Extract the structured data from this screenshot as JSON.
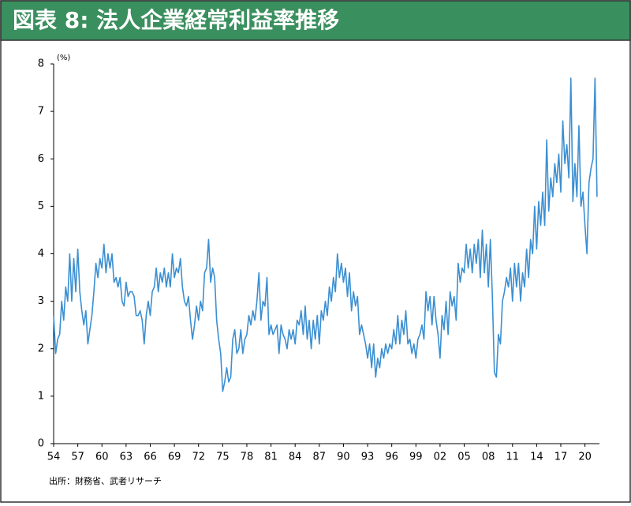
{
  "chart_data": {
    "type": "line",
    "title": "図表 8: 法人企業経常利益率推移",
    "y_label": "(%)",
    "source": "出所：財務省、武者リサーチ",
    "color": "#3b8fd2",
    "x": [
      1954,
      1954.25,
      1954.5,
      1954.75,
      1955,
      1955.25,
      1955.5,
      1955.75,
      1956,
      1956.25,
      1956.5,
      1956.75,
      1957,
      1957.25,
      1957.5,
      1957.75,
      1958,
      1958.25,
      1958.5,
      1958.75,
      1959,
      1959.25,
      1959.5,
      1959.75,
      1960,
      1960.25,
      1960.5,
      1960.75,
      1961,
      1961.25,
      1961.5,
      1961.75,
      1962,
      1962.25,
      1962.5,
      1962.75,
      1963,
      1963.25,
      1963.5,
      1963.75,
      1964,
      1964.25,
      1964.5,
      1964.75,
      1965,
      1965.25,
      1965.5,
      1965.75,
      1966,
      1966.25,
      1966.5,
      1966.75,
      1967,
      1967.25,
      1967.5,
      1967.75,
      1968,
      1968.25,
      1968.5,
      1968.75,
      1969,
      1969.25,
      1969.5,
      1969.75,
      1970,
      1970.25,
      1970.5,
      1970.75,
      1971,
      1971.25,
      1971.5,
      1971.75,
      1972,
      1972.25,
      1972.5,
      1972.75,
      1973,
      1973.25,
      1973.5,
      1973.75,
      1974,
      1974.25,
      1974.5,
      1974.75,
      1975,
      1975.25,
      1975.5,
      1975.75,
      1976,
      1976.25,
      1976.5,
      1976.75,
      1977,
      1977.25,
      1977.5,
      1977.75,
      1978,
      1978.25,
      1978.5,
      1978.75,
      1979,
      1979.25,
      1979.5,
      1979.75,
      1980,
      1980.25,
      1980.5,
      1980.75,
      1981,
      1981.25,
      1981.5,
      1981.75,
      1982,
      1982.25,
      1982.5,
      1982.75,
      1983,
      1983.25,
      1983.5,
      1983.75,
      1984,
      1984.25,
      1984.5,
      1984.75,
      1985,
      1985.25,
      1985.5,
      1985.75,
      1986,
      1986.25,
      1986.5,
      1986.75,
      1987,
      1987.25,
      1987.5,
      1987.75,
      1988,
      1988.25,
      1988.5,
      1988.75,
      1989,
      1989.25,
      1989.5,
      1989.75,
      1990,
      1990.25,
      1990.5,
      1990.75,
      1991,
      1991.25,
      1991.5,
      1991.75,
      1992,
      1992.25,
      1992.5,
      1992.75,
      1993,
      1993.25,
      1993.5,
      1993.75,
      1994,
      1994.25,
      1994.5,
      1994.75,
      1995,
      1995.25,
      1995.5,
      1995.75,
      1996,
      1996.25,
      1996.5,
      1996.75,
      1997,
      1997.25,
      1997.5,
      1997.75,
      1998,
      1998.25,
      1998.5,
      1998.75,
      1999,
      1999.25,
      1999.5,
      1999.75,
      2000,
      2000.25,
      2000.5,
      2000.75,
      2001,
      2001.25,
      2001.5,
      2001.75,
      2002,
      2002.25,
      2002.5,
      2002.75,
      2003,
      2003.25,
      2003.5,
      2003.75,
      2004,
      2004.25,
      2004.5,
      2004.75,
      2005,
      2005.25,
      2005.5,
      2005.75,
      2006,
      2006.25,
      2006.5,
      2006.75,
      2007,
      2007.25,
      2007.5,
      2007.75,
      2008,
      2008.25,
      2008.5,
      2008.75,
      2009,
      2009.25,
      2009.5,
      2009.75,
      2010,
      2010.25,
      2010.5,
      2010.75,
      2011,
      2011.25,
      2011.5,
      2011.75,
      2012,
      2012.25,
      2012.5,
      2012.75,
      2013,
      2013.25,
      2013.5,
      2013.75,
      2014,
      2014.25,
      2014.5,
      2014.75,
      2015,
      2015.25,
      2015.5,
      2015.75,
      2016,
      2016.25,
      2016.5,
      2016.75,
      2017,
      2017.25,
      2017.5,
      2017.75,
      2018,
      2018.25,
      2018.5,
      2018.75,
      2019,
      2019.25,
      2019.5,
      2019.75,
      2020,
      2020.25,
      2020.5,
      2020.75,
      2021,
      2021.25,
      2021.5
    ],
    "values": [
      2.7,
      1.9,
      2.2,
      2.3,
      3.0,
      2.6,
      3.3,
      3.0,
      4.0,
      3.0,
      3.9,
      3.2,
      4.1,
      3.2,
      2.8,
      2.5,
      2.8,
      2.1,
      2.4,
      2.7,
      3.2,
      3.8,
      3.5,
      3.9,
      3.7,
      4.2,
      3.6,
      4.0,
      3.7,
      4.0,
      3.4,
      3.5,
      3.3,
      3.5,
      3.0,
      2.9,
      3.4,
      3.1,
      3.2,
      3.2,
      3.1,
      2.7,
      2.7,
      2.8,
      2.6,
      2.1,
      2.7,
      3.0,
      2.7,
      3.2,
      3.3,
      3.7,
      3.2,
      3.6,
      3.4,
      3.7,
      3.3,
      3.6,
      3.3,
      4.0,
      3.5,
      3.7,
      3.6,
      3.9,
      3.3,
      3.0,
      2.9,
      3.1,
      2.6,
      2.2,
      2.5,
      2.9,
      2.6,
      3.0,
      2.8,
      3.6,
      3.7,
      4.3,
      3.4,
      3.7,
      3.5,
      2.6,
      2.2,
      1.9,
      1.1,
      1.3,
      1.6,
      1.3,
      1.4,
      2.2,
      2.4,
      1.9,
      2.0,
      2.4,
      1.9,
      2.2,
      2.3,
      2.7,
      2.5,
      2.8,
      2.6,
      3.0,
      3.6,
      2.6,
      3.0,
      2.9,
      3.5,
      2.3,
      2.5,
      2.3,
      2.4,
      2.5,
      1.9,
      2.5,
      2.3,
      2.2,
      2.0,
      2.4,
      2.2,
      2.4,
      2.1,
      2.6,
      2.5,
      2.8,
      2.3,
      2.9,
      2.2,
      2.6,
      2.0,
      2.6,
      2.2,
      2.7,
      2.1,
      2.8,
      2.6,
      3.0,
      2.7,
      3.3,
      3.0,
      3.5,
      3.2,
      4.0,
      3.5,
      3.8,
      3.4,
      3.7,
      3.1,
      3.6,
      2.8,
      3.2,
      2.9,
      3.1,
      2.3,
      2.5,
      2.3,
      2.1,
      1.8,
      2.1,
      1.6,
      2.1,
      1.4,
      1.8,
      1.6,
      2.0,
      1.8,
      2.1,
      1.9,
      2.1,
      2.0,
      2.4,
      2.1,
      2.7,
      2.1,
      2.6,
      2.3,
      2.8,
      2.1,
      2.2,
      1.9,
      2.1,
      1.8,
      2.2,
      2.3,
      2.5,
      2.2,
      3.2,
      2.8,
      3.1,
      2.5,
      3.1,
      2.6,
      2.3,
      1.8,
      2.7,
      2.4,
      3.0,
      2.3,
      3.2,
      2.9,
      3.1,
      2.6,
      3.8,
      3.4,
      3.7,
      3.6,
      4.2,
      3.7,
      4.1,
      3.6,
      4.2,
      3.8,
      4.3,
      3.5,
      4.5,
      3.6,
      4.2,
      3.3,
      4.3,
      3.1,
      1.5,
      1.4,
      2.3,
      2.1,
      3.0,
      3.2,
      3.5,
      3.3,
      3.7,
      3.0,
      3.8,
      3.3,
      3.8,
      3.0,
      3.6,
      3.3,
      4.1,
      3.5,
      4.3,
      4.0,
      5.0,
      4.1,
      5.1,
      4.6,
      5.3,
      4.6,
      6.4,
      4.9,
      5.6,
      5.2,
      5.9,
      5.5,
      6.1,
      5.3,
      6.8,
      5.9,
      6.3,
      5.6,
      7.7,
      5.1,
      5.9,
      5.2,
      6.7,
      5.0,
      5.3,
      4.6,
      4.0,
      5.5,
      5.8,
      6.0,
      7.7,
      5.2
    ],
    "xlim": [
      1954,
      2021.8
    ],
    "xticks": [
      {
        "value": 1954,
        "label": "54"
      },
      {
        "value": 1957,
        "label": "57"
      },
      {
        "value": 1960,
        "label": "60"
      },
      {
        "value": 1963,
        "label": "63"
      },
      {
        "value": 1966,
        "label": "66"
      },
      {
        "value": 1969,
        "label": "69"
      },
      {
        "value": 1972,
        "label": "72"
      },
      {
        "value": 1975,
        "label": "75"
      },
      {
        "value": 1978,
        "label": "78"
      },
      {
        "value": 1981,
        "label": "81"
      },
      {
        "value": 1984,
        "label": "84"
      },
      {
        "value": 1987,
        "label": "87"
      },
      {
        "value": 1990,
        "label": "90"
      },
      {
        "value": 1993,
        "label": "93"
      },
      {
        "value": 1996,
        "label": "96"
      },
      {
        "value": 1999,
        "label": "99"
      },
      {
        "value": 2002,
        "label": "02"
      },
      {
        "value": 2005,
        "label": "05"
      },
      {
        "value": 2008,
        "label": "08"
      },
      {
        "value": 2011,
        "label": "11"
      },
      {
        "value": 2014,
        "label": "14"
      },
      {
        "value": 2017,
        "label": "17"
      },
      {
        "value": 2020,
        "label": "20"
      }
    ],
    "ylim": [
      0,
      8
    ],
    "yticks": [
      0,
      1,
      2,
      3,
      4,
      5,
      6,
      7,
      8
    ]
  }
}
